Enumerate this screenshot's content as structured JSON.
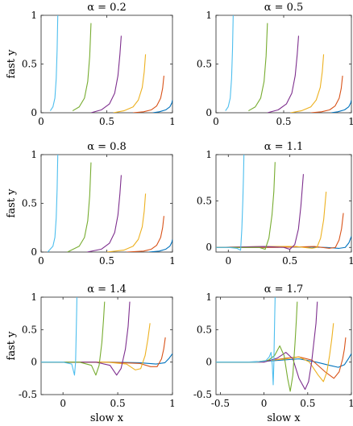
{
  "chart_data": [
    {
      "type": "line",
      "title": "α = 0.2",
      "alpha": 0.2,
      "ylabel": "fast y",
      "xlabel": "",
      "xlim": [
        0,
        1
      ],
      "ylim": [
        0,
        1
      ],
      "xticks": [
        0,
        0.5,
        1
      ],
      "yticks": [
        0,
        0.5,
        1
      ],
      "series": [
        {
          "color": "#0072BD",
          "x": [
            0.85,
            0.9,
            0.95,
            0.98,
            0.995,
            1.0
          ],
          "y": [
            0.0,
            0.01,
            0.03,
            0.06,
            0.1,
            0.13
          ]
        },
        {
          "color": "#D95319",
          "x": [
            0.7,
            0.78,
            0.84,
            0.88,
            0.91,
            0.925,
            0.935
          ],
          "y": [
            0.0,
            0.01,
            0.03,
            0.07,
            0.15,
            0.25,
            0.38
          ]
        },
        {
          "color": "#EDB120",
          "x": [
            0.55,
            0.63,
            0.7,
            0.74,
            0.77,
            0.785,
            0.795
          ],
          "y": [
            0.0,
            0.02,
            0.06,
            0.13,
            0.26,
            0.42,
            0.6
          ]
        },
        {
          "color": "#7E2F8E",
          "x": [
            0.38,
            0.46,
            0.52,
            0.56,
            0.585,
            0.6,
            0.61
          ],
          "y": [
            0.0,
            0.03,
            0.09,
            0.2,
            0.38,
            0.6,
            0.79
          ]
        },
        {
          "color": "#77AC30",
          "x": [
            0.24,
            0.29,
            0.33,
            0.355,
            0.37,
            0.38
          ],
          "y": [
            0.02,
            0.06,
            0.15,
            0.32,
            0.58,
            0.92
          ]
        },
        {
          "color": "#4DBEEE",
          "x": [
            0.07,
            0.09,
            0.105,
            0.115,
            0.122,
            0.127
          ],
          "y": [
            0.02,
            0.06,
            0.15,
            0.35,
            0.65,
            1.0
          ]
        }
      ]
    },
    {
      "type": "line",
      "title": "α = 0.5",
      "alpha": 0.5,
      "ylabel": "",
      "xlabel": "",
      "xlim": [
        0,
        1
      ],
      "ylim": [
        0,
        1
      ],
      "xticks": [
        0,
        0.5,
        1
      ],
      "yticks": [
        0,
        0.5,
        1
      ],
      "series": [
        {
          "color": "#0072BD",
          "x": [
            0.85,
            0.9,
            0.95,
            0.98,
            0.995,
            1.0
          ],
          "y": [
            0.0,
            0.01,
            0.03,
            0.06,
            0.1,
            0.13
          ]
        },
        {
          "color": "#D95319",
          "x": [
            0.7,
            0.78,
            0.84,
            0.88,
            0.91,
            0.925,
            0.935
          ],
          "y": [
            0.0,
            0.01,
            0.03,
            0.07,
            0.15,
            0.25,
            0.38
          ]
        },
        {
          "color": "#EDB120",
          "x": [
            0.55,
            0.63,
            0.7,
            0.74,
            0.77,
            0.785,
            0.795
          ],
          "y": [
            0.0,
            0.02,
            0.06,
            0.13,
            0.26,
            0.42,
            0.6
          ]
        },
        {
          "color": "#7E2F8E",
          "x": [
            0.38,
            0.46,
            0.52,
            0.56,
            0.585,
            0.6,
            0.61
          ],
          "y": [
            0.0,
            0.03,
            0.09,
            0.2,
            0.38,
            0.6,
            0.79
          ]
        },
        {
          "color": "#77AC30",
          "x": [
            0.24,
            0.29,
            0.33,
            0.355,
            0.37,
            0.38
          ],
          "y": [
            0.02,
            0.06,
            0.15,
            0.32,
            0.58,
            0.92
          ]
        },
        {
          "color": "#4DBEEE",
          "x": [
            0.07,
            0.09,
            0.105,
            0.115,
            0.122,
            0.127
          ],
          "y": [
            0.02,
            0.06,
            0.15,
            0.35,
            0.65,
            1.0
          ]
        }
      ]
    },
    {
      "type": "line",
      "title": "α = 0.8",
      "alpha": 0.8,
      "ylabel": "fast y",
      "xlabel": "",
      "xlim": [
        0,
        1
      ],
      "ylim": [
        0,
        1
      ],
      "xticks": [
        0,
        0.5,
        1
      ],
      "yticks": [
        0,
        0.5,
        1
      ],
      "series": [
        {
          "color": "#0072BD",
          "x": [
            0.82,
            0.9,
            0.95,
            0.98,
            0.995,
            1.0
          ],
          "y": [
            0.0,
            0.01,
            0.03,
            0.06,
            0.1,
            0.13
          ]
        },
        {
          "color": "#D95319",
          "x": [
            0.65,
            0.78,
            0.84,
            0.88,
            0.91,
            0.925,
            0.935
          ],
          "y": [
            0.0,
            0.01,
            0.03,
            0.07,
            0.15,
            0.25,
            0.37
          ]
        },
        {
          "color": "#EDB120",
          "x": [
            0.5,
            0.63,
            0.7,
            0.74,
            0.77,
            0.785,
            0.795
          ],
          "y": [
            0.0,
            0.02,
            0.06,
            0.13,
            0.26,
            0.42,
            0.6
          ]
        },
        {
          "color": "#7E2F8E",
          "x": [
            0.35,
            0.46,
            0.52,
            0.56,
            0.585,
            0.6,
            0.61
          ],
          "y": [
            0.0,
            0.03,
            0.09,
            0.2,
            0.38,
            0.6,
            0.79
          ]
        },
        {
          "color": "#77AC30",
          "x": [
            0.2,
            0.29,
            0.33,
            0.355,
            0.37,
            0.38
          ],
          "y": [
            0.0,
            0.06,
            0.15,
            0.32,
            0.58,
            0.92
          ]
        },
        {
          "color": "#4DBEEE",
          "x": [
            0.05,
            0.09,
            0.105,
            0.115,
            0.122,
            0.127
          ],
          "y": [
            0.0,
            0.06,
            0.15,
            0.35,
            0.65,
            1.0
          ]
        }
      ]
    },
    {
      "type": "line",
      "title": "α = 1.1",
      "alpha": 1.1,
      "ylabel": "",
      "xlabel": "",
      "xlim": [
        -0.1,
        1
      ],
      "ylim": [
        -0.05,
        1
      ],
      "xticks": [
        0,
        0.5,
        1
      ],
      "yticks": [
        0,
        0.5,
        1
      ],
      "series": [
        {
          "color": "#0072BD",
          "x": [
            -0.1,
            0.3,
            0.6,
            0.8,
            0.9,
            0.95,
            0.98,
            1.0
          ],
          "y": [
            0.0,
            0.0,
            0.005,
            0.0,
            -0.01,
            0.0,
            0.05,
            0.12
          ]
        },
        {
          "color": "#D95319",
          "x": [
            -0.1,
            0.4,
            0.7,
            0.82,
            0.87,
            0.9,
            0.92,
            0.935
          ],
          "y": [
            0.0,
            0.0,
            0.01,
            -0.01,
            0.0,
            0.08,
            0.2,
            0.37
          ]
        },
        {
          "color": "#EDB120",
          "x": [
            -0.1,
            0.3,
            0.55,
            0.68,
            0.72,
            0.75,
            0.775,
            0.795
          ],
          "y": [
            0.0,
            0.01,
            0.01,
            -0.01,
            0.0,
            0.1,
            0.3,
            0.6
          ]
        },
        {
          "color": "#7E2F8E",
          "x": [
            -0.1,
            0.3,
            0.45,
            0.5,
            0.54,
            0.57,
            0.59,
            0.61
          ],
          "y": [
            0.0,
            0.01,
            0.0,
            -0.02,
            0.03,
            0.2,
            0.45,
            0.79
          ]
        },
        {
          "color": "#77AC30",
          "x": [
            -0.1,
            0.15,
            0.25,
            0.3,
            0.33,
            0.355,
            0.37,
            0.38
          ],
          "y": [
            0.0,
            0.0,
            0.0,
            -0.02,
            0.1,
            0.35,
            0.6,
            0.92
          ]
        },
        {
          "color": "#4DBEEE",
          "x": [
            -0.1,
            0.0,
            0.07,
            0.1,
            0.11,
            0.118,
            0.123,
            0.127
          ],
          "y": [
            0.0,
            0.0,
            -0.01,
            -0.03,
            0.2,
            0.5,
            0.75,
            1.0
          ]
        }
      ]
    },
    {
      "type": "line",
      "title": "α = 1.4",
      "alpha": 1.4,
      "ylabel": "fast y",
      "xlabel": "slow x",
      "xlim": [
        -0.2,
        1
      ],
      "ylim": [
        -0.5,
        1
      ],
      "xticks": [
        0,
        0.5,
        1
      ],
      "yticks": [
        -0.5,
        0,
        0.5,
        1
      ],
      "series": [
        {
          "color": "#0072BD",
          "x": [
            -0.2,
            0.4,
            0.7,
            0.85,
            0.93,
            0.97,
            1.0
          ],
          "y": [
            0.0,
            0.0,
            -0.01,
            -0.03,
            -0.01,
            0.06,
            0.13
          ]
        },
        {
          "color": "#D95319",
          "x": [
            -0.2,
            0.4,
            0.7,
            0.8,
            0.86,
            0.9,
            0.92,
            0.935
          ],
          "y": [
            0.0,
            0.0,
            -0.02,
            -0.07,
            -0.07,
            0.05,
            0.2,
            0.38
          ]
        },
        {
          "color": "#EDB120",
          "x": [
            -0.2,
            0.4,
            0.58,
            0.66,
            0.71,
            0.75,
            0.775,
            0.795
          ],
          "y": [
            0.0,
            0.0,
            -0.03,
            -0.12,
            -0.1,
            0.1,
            0.35,
            0.6
          ]
        },
        {
          "color": "#7E2F8E",
          "x": [
            -0.2,
            0.3,
            0.43,
            0.49,
            0.53,
            0.57,
            0.595,
            0.61
          ],
          "y": [
            0.0,
            0.0,
            -0.05,
            -0.2,
            -0.1,
            0.2,
            0.55,
            0.93
          ]
        },
        {
          "color": "#77AC30",
          "x": [
            -0.2,
            0.15,
            0.26,
            0.3,
            0.33,
            0.355,
            0.37,
            0.38
          ],
          "y": [
            0.0,
            0.0,
            -0.05,
            -0.2,
            -0.05,
            0.3,
            0.65,
            0.93
          ]
        },
        {
          "color": "#4DBEEE",
          "x": [
            -0.2,
            0.0,
            0.08,
            0.105,
            0.115,
            0.12,
            0.125,
            0.127
          ],
          "y": [
            0.0,
            0.0,
            -0.03,
            -0.2,
            0.0,
            0.4,
            0.8,
            1.0
          ]
        }
      ]
    },
    {
      "type": "line",
      "title": "α = 1.7",
      "alpha": 1.7,
      "ylabel": "",
      "xlabel": "slow x",
      "xlim": [
        -0.55,
        1
      ],
      "ylim": [
        -0.5,
        1
      ],
      "xticks": [
        -0.5,
        0,
        0.5,
        1
      ],
      "yticks": [
        -0.5,
        0,
        0.5,
        1
      ],
      "series": [
        {
          "color": "#0072BD",
          "x": [
            -0.55,
            -0.2,
            0.0,
            0.2,
            0.4,
            0.6,
            0.75,
            0.85,
            0.92,
            0.97,
            1.0
          ],
          "y": [
            0.0,
            0.0,
            0.01,
            0.03,
            0.05,
            0.0,
            -0.05,
            -0.08,
            -0.04,
            0.06,
            0.13
          ]
        },
        {
          "color": "#D95319",
          "x": [
            -0.55,
            -0.1,
            0.1,
            0.25,
            0.4,
            0.55,
            0.7,
            0.8,
            0.86,
            0.9,
            0.92,
            0.935
          ],
          "y": [
            0.0,
            0.0,
            0.03,
            0.06,
            0.08,
            0.03,
            -0.15,
            -0.25,
            -0.15,
            0.05,
            0.2,
            0.38
          ]
        },
        {
          "color": "#EDB120",
          "x": [
            -0.55,
            -0.05,
            0.1,
            0.25,
            0.4,
            0.52,
            0.62,
            0.68,
            0.72,
            0.75,
            0.775,
            0.795
          ],
          "y": [
            0.0,
            0.0,
            0.03,
            0.05,
            0.08,
            0.0,
            -0.2,
            -0.3,
            -0.15,
            0.1,
            0.35,
            0.6
          ]
        },
        {
          "color": "#7E2F8E",
          "x": [
            -0.55,
            0.0,
            0.15,
            0.25,
            0.33,
            0.4,
            0.47,
            0.51,
            0.545,
            0.57,
            0.595,
            0.61
          ],
          "y": [
            0.0,
            0.0,
            0.06,
            0.15,
            0.05,
            -0.25,
            -0.42,
            -0.3,
            0.0,
            0.3,
            0.6,
            0.93
          ]
        },
        {
          "color": "#77AC30",
          "x": [
            -0.55,
            -0.1,
            0.05,
            0.12,
            0.18,
            0.23,
            0.27,
            0.3,
            0.33,
            0.355,
            0.37,
            0.38
          ],
          "y": [
            0.0,
            0.0,
            0.03,
            0.1,
            0.25,
            0.1,
            -0.25,
            -0.45,
            -0.2,
            0.3,
            0.65,
            0.93
          ]
        },
        {
          "color": "#4DBEEE",
          "x": [
            -0.55,
            -0.1,
            0.02,
            0.06,
            0.08,
            0.095,
            0.105,
            0.112,
            0.118,
            0.123,
            0.127
          ],
          "y": [
            0.0,
            0.0,
            0.02,
            0.08,
            0.15,
            -0.05,
            -0.35,
            -0.05,
            0.4,
            0.75,
            1.0
          ]
        }
      ]
    }
  ]
}
